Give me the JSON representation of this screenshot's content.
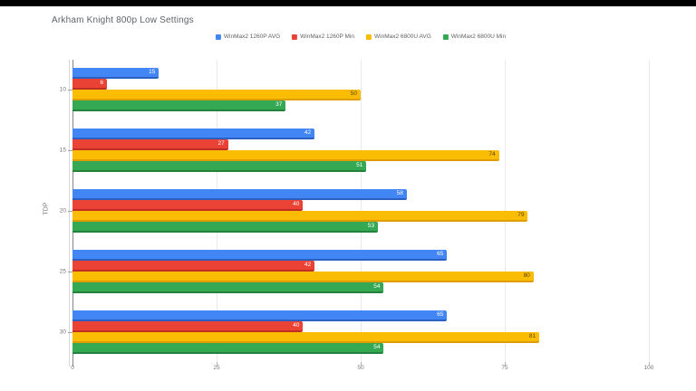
{
  "chart_data": {
    "type": "bar",
    "orientation": "horizontal",
    "title": "Arkham Knight 800p Low Settings",
    "ylabel": "TDP",
    "xlabel": "",
    "xlim": [
      0,
      100
    ],
    "xticks": [
      0,
      25,
      50,
      75,
      100
    ],
    "grid": true,
    "legend_position": "top-center",
    "categories": [
      "10",
      "15",
      "20",
      "25",
      "30"
    ],
    "series": [
      {
        "name": "WinMax2 1260P AVG",
        "color": "#4285f4",
        "shade": "#2b5fc2",
        "label_color": "#ffffff",
        "values": [
          15,
          42,
          58,
          65,
          65
        ]
      },
      {
        "name": "WinMax2 1260P Min",
        "color": "#ea4335",
        "shade": "#c02e22",
        "label_color": "#ffffff",
        "values": [
          6,
          27,
          40,
          42,
          40
        ]
      },
      {
        "name": "WinMax2 6800U AVG",
        "color": "#fbbc04",
        "shade": "#e09c00",
        "label_color": "#574400",
        "values": [
          50,
          74,
          79,
          80,
          81
        ]
      },
      {
        "name": "WinMax2 6800U Min",
        "color": "#34a853",
        "shade": "#23813c",
        "label_color": "#ffffff",
        "values": [
          37,
          51,
          53,
          54,
          54
        ]
      }
    ]
  },
  "colors": {
    "background": "#ffffff",
    "letterbox": "#000000",
    "title_text": "#5f6368",
    "axis_text": "#757575",
    "legend_text": "#616161",
    "gridline": "#e9e9e9",
    "axis_line": "#80868b"
  }
}
